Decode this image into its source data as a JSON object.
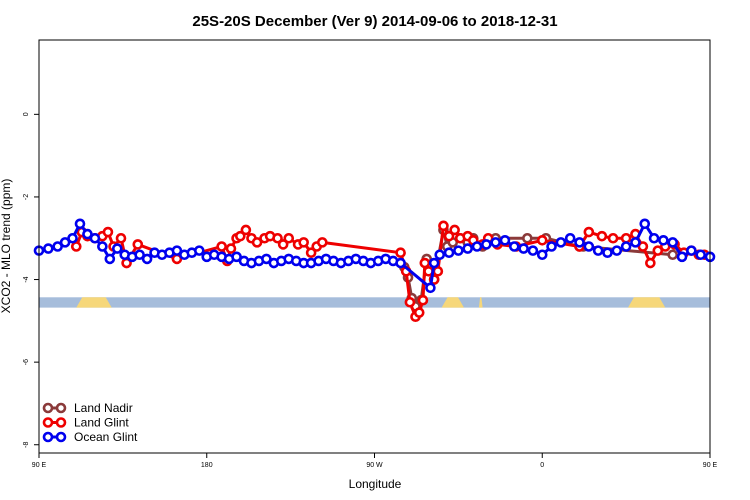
{
  "chart_data": {
    "type": "line",
    "title": "25S-20S December (Ver 9)   2014-09-06 to 2018-12-31",
    "xlabel": "Longitude",
    "ylabel": "XCO2 - MLO trend (ppm)",
    "xlim": [
      90,
      450
    ],
    "ylim": [
      -8.2,
      1.8
    ],
    "x_ticks": [
      {
        "value": 90,
        "label": "90 E"
      },
      {
        "value": 180,
        "label": "180"
      },
      {
        "value": 270,
        "label": "90 W"
      },
      {
        "value": 360,
        "label": "0"
      },
      {
        "value": 450,
        "label": "90 E"
      },
      {
        "value": 540,
        "label": "180"
      }
    ],
    "y_ticks": [
      {
        "value": 0,
        "label": "0"
      },
      {
        "value": -2,
        "label": "-2"
      },
      {
        "value": -4,
        "label": "-4"
      },
      {
        "value": -6,
        "label": "-6"
      },
      {
        "value": -8,
        "label": "-8"
      }
    ],
    "legend_position": "bottom-left",
    "land_band": {
      "y_range": [
        -4.43,
        -4.68
      ],
      "ocean_color": "#a6bddb",
      "land_color": "#f6d77a",
      "land_segments": [
        [
          110,
          129
        ],
        [
          306,
          318
        ],
        [
          326,
          328
        ],
        [
          406,
          426
        ]
      ]
    },
    "series": [
      {
        "name": "Land Nadir",
        "color": "#8b3a3a",
        "x": [
          286,
          288,
          290,
          292,
          295,
          298,
          300,
          302,
          307,
          309,
          312,
          316,
          320,
          323,
          328,
          335,
          352,
          362,
          380,
          382,
          430
        ],
        "y": [
          -3.7,
          -3.95,
          -4.45,
          -4.65,
          -4.5,
          -3.5,
          -3.7,
          -4.0,
          -2.8,
          -3.2,
          -3.1,
          -3.0,
          -3.1,
          -3.0,
          -3.2,
          -3.0,
          -3.0,
          -3.0,
          -3.2,
          -3.2,
          -3.4
        ]
      },
      {
        "name": "Land Glint",
        "color": "#ee0000",
        "x": [
          110,
          113,
          116,
          120,
          124,
          127,
          130,
          134,
          137,
          143,
          164,
          188,
          191,
          193,
          196,
          198,
          201,
          204,
          207,
          211,
          214,
          218,
          221,
          224,
          229,
          232,
          236,
          239,
          242,
          284,
          287,
          289,
          292,
          294,
          296,
          297,
          299,
          302,
          304,
          307,
          310,
          313,
          316,
          320,
          323,
          328,
          331,
          336,
          346,
          360,
          380,
          385,
          392,
          398,
          405,
          410,
          414,
          418,
          422,
          426,
          431,
          436,
          440,
          444,
          447
        ],
        "y": [
          -3.2,
          -2.85,
          -2.95,
          -3.0,
          -2.95,
          -2.85,
          -3.2,
          -3.0,
          -3.6,
          -3.15,
          -3.5,
          -3.2,
          -3.55,
          -3.25,
          -3.0,
          -2.95,
          -2.8,
          -3.0,
          -3.1,
          -3.0,
          -2.95,
          -3.0,
          -3.15,
          -3.0,
          -3.15,
          -3.1,
          -3.35,
          -3.2,
          -3.1,
          -3.35,
          -3.8,
          -4.55,
          -4.9,
          -4.8,
          -4.5,
          -3.6,
          -3.8,
          -4.0,
          -3.8,
          -2.7,
          -2.95,
          -2.8,
          -3.0,
          -2.95,
          -3.05,
          -3.15,
          -3.0,
          -3.15,
          -3.2,
          -3.05,
          -3.2,
          -2.85,
          -2.95,
          -3.0,
          -3.0,
          -2.9,
          -3.2,
          -3.6,
          -3.3,
          -3.2,
          -3.15,
          -3.35,
          -3.3,
          -3.4,
          -3.4
        ]
      },
      {
        "name": "Ocean Glint",
        "color": "#0000ee",
        "x": [
          90,
          95,
          100,
          104,
          108,
          112,
          116,
          120,
          124,
          128,
          132,
          136,
          140,
          144,
          148,
          152,
          156,
          160,
          164,
          168,
          172,
          176,
          180,
          184,
          188,
          192,
          196,
          200,
          204,
          208,
          212,
          216,
          220,
          224,
          228,
          232,
          236,
          240,
          244,
          248,
          252,
          256,
          260,
          264,
          268,
          272,
          276,
          280,
          284,
          300,
          302,
          305,
          310,
          315,
          320,
          325,
          330,
          335,
          340,
          345,
          350,
          355,
          360,
          365,
          370,
          375,
          380,
          385,
          390,
          395,
          400,
          405,
          410,
          415,
          420,
          425,
          430,
          435,
          440,
          445,
          450
        ],
        "y": [
          -3.3,
          -3.25,
          -3.2,
          -3.1,
          -3.0,
          -2.65,
          -2.9,
          -3.0,
          -3.2,
          -3.5,
          -3.25,
          -3.4,
          -3.45,
          -3.4,
          -3.5,
          -3.35,
          -3.4,
          -3.35,
          -3.3,
          -3.4,
          -3.35,
          -3.3,
          -3.45,
          -3.4,
          -3.45,
          -3.5,
          -3.45,
          -3.55,
          -3.6,
          -3.55,
          -3.5,
          -3.6,
          -3.55,
          -3.5,
          -3.55,
          -3.6,
          -3.6,
          -3.55,
          -3.5,
          -3.55,
          -3.6,
          -3.55,
          -3.5,
          -3.55,
          -3.6,
          -3.55,
          -3.5,
          -3.55,
          -3.6,
          -4.2,
          -3.6,
          -3.4,
          -3.35,
          -3.3,
          -3.25,
          -3.2,
          -3.15,
          -3.1,
          -3.05,
          -3.2,
          -3.25,
          -3.3,
          -3.4,
          -3.2,
          -3.1,
          -3.0,
          -3.1,
          -3.2,
          -3.3,
          -3.35,
          -3.3,
          -3.2,
          -3.1,
          -2.65,
          -3.0,
          -3.05,
          -3.1,
          -3.45,
          -3.3,
          -3.4,
          -3.45
        ]
      }
    ]
  }
}
